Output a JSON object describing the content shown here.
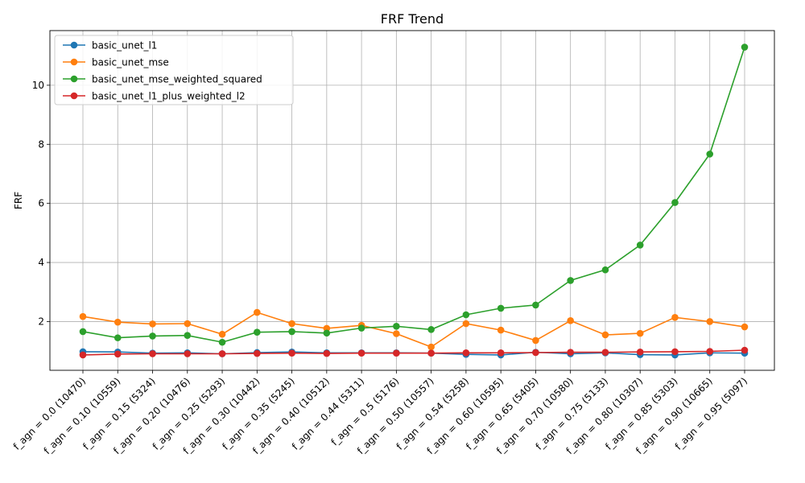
{
  "chart_data": {
    "type": "line",
    "title": "FRF Trend",
    "xlabel": "",
    "ylabel": "FRF",
    "grid": true,
    "legend_position": "upper-left",
    "ylim": [
      0.35,
      11.85
    ],
    "yticks": [
      2,
      4,
      6,
      8,
      10
    ],
    "categories": [
      "f_agn = 0.0 (10470)",
      "f_agn = 0.10 (10559)",
      "f_agn = 0.15 (5324)",
      "f_agn = 0.20 (10476)",
      "f_agn = 0.25 (5293)",
      "f_agn = 0.30 (10442)",
      "f_agn = 0.35 (5245)",
      "f_agn = 0.40 (10512)",
      "f_agn = 0.44 (5311)",
      "f_agn = 0.5 (5176)",
      "f_agn = 0.50 (10557)",
      "f_agn = 0.54 (5258)",
      "f_agn = 0.60 (10595)",
      "f_agn = 0.65 (5405)",
      "f_agn = 0.70 (10580)",
      "f_agn = 0.75 (5133)",
      "f_agn = 0.80 (10307)",
      "f_agn = 0.85 (5303)",
      "f_agn = 0.90 (10665)",
      "f_agn = 0.95 (5097)"
    ],
    "series": [
      {
        "name": "basic_unet_l1",
        "color": "#1f77b4",
        "values": [
          0.98,
          0.97,
          0.93,
          0.94,
          0.91,
          0.95,
          0.97,
          0.94,
          0.94,
          0.94,
          0.93,
          0.89,
          0.87,
          0.96,
          0.91,
          0.94,
          0.88,
          0.87,
          0.94,
          0.93
        ]
      },
      {
        "name": "basic_unet_mse",
        "color": "#ff7f0e",
        "values": [
          2.17,
          1.98,
          1.92,
          1.93,
          1.57,
          2.31,
          1.93,
          1.77,
          1.87,
          1.59,
          1.14,
          1.93,
          1.71,
          1.36,
          2.03,
          1.55,
          1.6,
          2.14,
          2.0,
          1.82
        ]
      },
      {
        "name": "basic_unet_mse_weighted_squared",
        "color": "#2ca02c",
        "values": [
          1.66,
          1.45,
          1.51,
          1.53,
          1.3,
          1.64,
          1.66,
          1.61,
          1.78,
          1.84,
          1.73,
          2.23,
          2.45,
          2.56,
          3.39,
          3.75,
          4.59,
          6.03,
          7.67,
          11.29
        ]
      },
      {
        "name": "basic_unet_l1_plus_weighted_l2",
        "color": "#d62728",
        "values": [
          0.87,
          0.9,
          0.91,
          0.91,
          0.91,
          0.92,
          0.93,
          0.92,
          0.93,
          0.93,
          0.93,
          0.94,
          0.94,
          0.95,
          0.96,
          0.96,
          0.97,
          0.98,
          0.99,
          1.03
        ]
      }
    ]
  }
}
